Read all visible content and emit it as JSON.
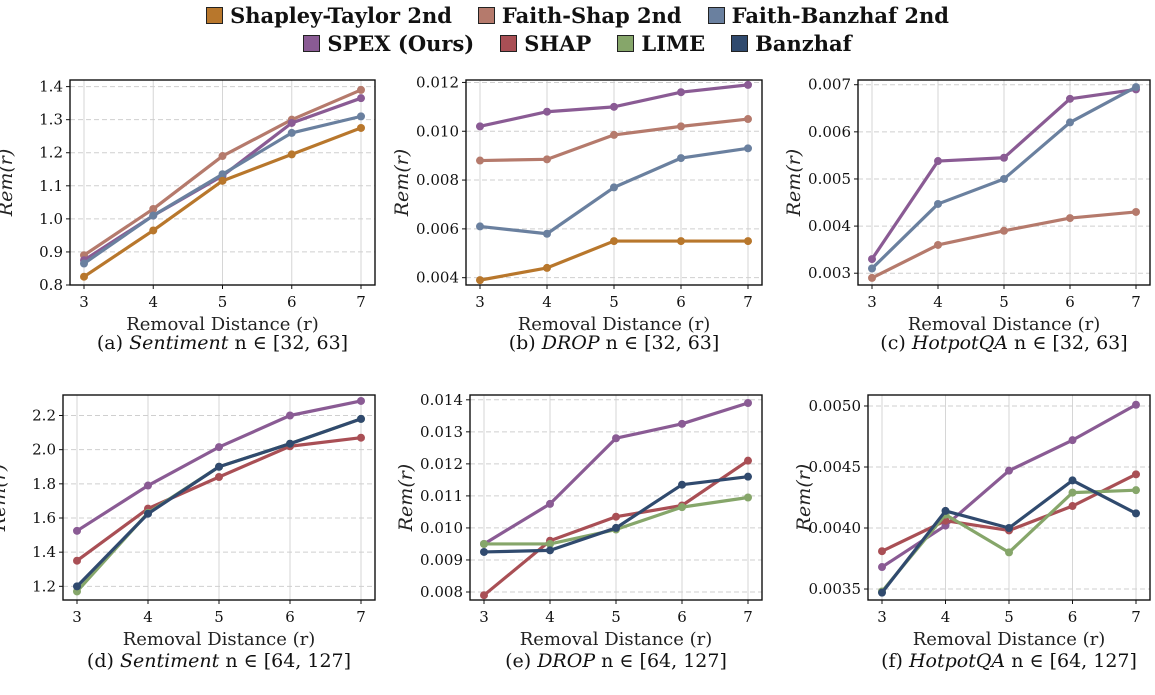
{
  "legend": {
    "row1": [
      {
        "label": "Shapley-Taylor 2nd",
        "color": "#b8772c"
      },
      {
        "label": "Faith-Shap 2nd",
        "color": "#b57a6c"
      },
      {
        "label": "Faith-Banzhaf 2nd",
        "color": "#6a809f"
      }
    ],
    "row2": [
      {
        "label": "SPEX (Ours)",
        "color": "#8a5b94"
      },
      {
        "label": "SHAP",
        "color": "#a94f55"
      },
      {
        "label": "LIME",
        "color": "#86a66a"
      },
      {
        "label": "Banzhaf",
        "color": "#304a6e"
      }
    ]
  },
  "chart_data": [
    {
      "type": "line",
      "caption_prefix": "(a) ",
      "caption_dataset": "Sentiment",
      "caption_range": " n ∈ [32, 63]",
      "xlabel": "Removal Distance (r)",
      "ylabel": "Rem(r)",
      "x": [
        3,
        4,
        5,
        6,
        7
      ],
      "xticks": [
        "3",
        "4",
        "5",
        "6",
        "7"
      ],
      "ylim": [
        0.8,
        1.42
      ],
      "yticks": [
        "0.8",
        "0.9",
        "1.0",
        "1.1",
        "1.2",
        "1.3",
        "1.4"
      ],
      "ytick_values": [
        0.8,
        0.9,
        1.0,
        1.1,
        1.2,
        1.3,
        1.4
      ],
      "series": [
        {
          "name": "Faith-Shap 2nd",
          "color": "#b57a6c",
          "values": [
            0.89,
            1.03,
            1.19,
            1.3,
            1.39
          ]
        },
        {
          "name": "SPEX (Ours)",
          "color": "#8a5b94",
          "values": [
            0.875,
            1.01,
            1.13,
            1.29,
            1.365
          ]
        },
        {
          "name": "Faith-Banzhaf 2nd",
          "color": "#6a809f",
          "values": [
            0.865,
            1.01,
            1.135,
            1.26,
            1.31
          ]
        },
        {
          "name": "Shapley-Taylor 2nd",
          "color": "#b8772c",
          "values": [
            0.825,
            0.965,
            1.115,
            1.195,
            1.275
          ]
        }
      ]
    },
    {
      "type": "line",
      "caption_prefix": "(b) ",
      "caption_dataset": "DROP",
      "caption_range": " n ∈ [32, 63]",
      "xlabel": "Removal Distance (r)",
      "ylabel": "Rem(r)",
      "x": [
        3,
        4,
        5,
        6,
        7
      ],
      "xticks": [
        "3",
        "4",
        "5",
        "6",
        "7"
      ],
      "ylim": [
        0.0037,
        0.0121
      ],
      "yticks": [
        "0.004",
        "0.006",
        "0.008",
        "0.010",
        "0.012"
      ],
      "ytick_values": [
        0.004,
        0.006,
        0.008,
        0.01,
        0.012
      ],
      "series": [
        {
          "name": "SPEX (Ours)",
          "color": "#8a5b94",
          "values": [
            0.0102,
            0.0108,
            0.011,
            0.0116,
            0.0119
          ]
        },
        {
          "name": "Faith-Shap 2nd",
          "color": "#b57a6c",
          "values": [
            0.0088,
            0.00885,
            0.00985,
            0.0102,
            0.0105
          ]
        },
        {
          "name": "Faith-Banzhaf 2nd",
          "color": "#6a809f",
          "values": [
            0.0061,
            0.0058,
            0.0077,
            0.0089,
            0.0093
          ]
        },
        {
          "name": "Shapley-Taylor 2nd",
          "color": "#b8772c",
          "values": [
            0.0039,
            0.0044,
            0.0055,
            0.0055,
            0.0055
          ]
        }
      ]
    },
    {
      "type": "line",
      "caption_prefix": "(c) ",
      "caption_dataset": "HotpotQA",
      "caption_range": " n ∈ [32, 63]",
      "xlabel": "Removal Distance (r)",
      "ylabel": "Rem(r)",
      "x": [
        3,
        4,
        5,
        6,
        7
      ],
      "xticks": [
        "3",
        "4",
        "5",
        "6",
        "7"
      ],
      "ylim": [
        0.00275,
        0.0071
      ],
      "yticks": [
        "0.003",
        "0.004",
        "0.005",
        "0.006",
        "0.007"
      ],
      "ytick_values": [
        0.003,
        0.004,
        0.005,
        0.006,
        0.007
      ],
      "series": [
        {
          "name": "SPEX (Ours)",
          "color": "#8a5b94",
          "values": [
            0.0033,
            0.00538,
            0.00545,
            0.0067,
            0.0069
          ]
        },
        {
          "name": "Faith-Banzhaf 2nd",
          "color": "#6a809f",
          "values": [
            0.0031,
            0.00447,
            0.005,
            0.0062,
            0.00695
          ]
        },
        {
          "name": "Faith-Shap 2nd",
          "color": "#b57a6c",
          "values": [
            0.0029,
            0.0036,
            0.0039,
            0.00417,
            0.0043
          ]
        }
      ]
    },
    {
      "type": "line",
      "caption_prefix": "(d) ",
      "caption_dataset": "Sentiment",
      "caption_range": " n ∈ [64, 127]",
      "xlabel": "Removal Distance (r)",
      "ylabel": "Rem(r)",
      "x": [
        3,
        4,
        5,
        6,
        7
      ],
      "xticks": [
        "3",
        "4",
        "5",
        "6",
        "7"
      ],
      "ylim": [
        1.12,
        2.32
      ],
      "yticks": [
        "1.2",
        "1.4",
        "1.6",
        "1.8",
        "2.0",
        "2.2"
      ],
      "ytick_values": [
        1.2,
        1.4,
        1.6,
        1.8,
        2.0,
        2.2
      ],
      "series": [
        {
          "name": "SPEX (Ours)",
          "color": "#8a5b94",
          "values": [
            1.525,
            1.79,
            2.015,
            2.2,
            2.285
          ]
        },
        {
          "name": "SHAP",
          "color": "#a94f55",
          "values": [
            1.35,
            1.655,
            1.84,
            2.02,
            2.07
          ]
        },
        {
          "name": "LIME",
          "color": "#86a66a",
          "values": [
            1.17,
            1.63,
            1.9,
            2.035,
            2.18
          ]
        },
        {
          "name": "Banzhaf",
          "color": "#304a6e",
          "values": [
            1.2,
            1.625,
            1.9,
            2.035,
            2.18
          ]
        }
      ]
    },
    {
      "type": "line",
      "caption_prefix": "(e) ",
      "caption_dataset": "DROP",
      "caption_range": " n ∈ [64, 127]",
      "xlabel": "Removal Distance (r)",
      "ylabel": "Rem(r)",
      "x": [
        3,
        4,
        5,
        6,
        7
      ],
      "xticks": [
        "3",
        "4",
        "5",
        "6",
        "7"
      ],
      "ylim": [
        0.00775,
        0.01415
      ],
      "yticks": [
        "0.008",
        "0.009",
        "0.010",
        "0.011",
        "0.012",
        "0.013",
        "0.014"
      ],
      "ytick_values": [
        0.008,
        0.009,
        0.01,
        0.011,
        0.012,
        0.013,
        0.014
      ],
      "series": [
        {
          "name": "SPEX (Ours)",
          "color": "#8a5b94",
          "values": [
            0.0095,
            0.01075,
            0.0128,
            0.01325,
            0.0139
          ]
        },
        {
          "name": "SHAP",
          "color": "#a94f55",
          "values": [
            0.0079,
            0.0096,
            0.01035,
            0.0107,
            0.0121
          ]
        },
        {
          "name": "LIME",
          "color": "#86a66a",
          "values": [
            0.0095,
            0.0095,
            0.00995,
            0.01065,
            0.01095
          ]
        },
        {
          "name": "Banzhaf",
          "color": "#304a6e",
          "values": [
            0.00925,
            0.0093,
            0.01,
            0.01135,
            0.0116
          ]
        }
      ]
    },
    {
      "type": "line",
      "caption_prefix": "(f) ",
      "caption_dataset": "HotpotQA",
      "caption_range": " n ∈ [64, 127]",
      "xlabel": "Removal Distance (r)",
      "ylabel": "Rem(r)",
      "x": [
        3,
        4,
        5,
        6,
        7
      ],
      "xticks": [
        "3",
        "4",
        "5",
        "6",
        "7"
      ],
      "ylim": [
        0.00341,
        0.00509
      ],
      "yticks": [
        "0.0035",
        "0.0040",
        "0.0045",
        "0.0050"
      ],
      "ytick_values": [
        0.0035,
        0.004,
        0.0045,
        0.005
      ],
      "series": [
        {
          "name": "SPEX (Ours)",
          "color": "#8a5b94",
          "values": [
            0.00368,
            0.00402,
            0.00447,
            0.00472,
            0.00501
          ]
        },
        {
          "name": "SHAP",
          "color": "#a94f55",
          "values": [
            0.00381,
            0.00406,
            0.00398,
            0.00418,
            0.00444
          ]
        },
        {
          "name": "LIME",
          "color": "#86a66a",
          "values": [
            0.00348,
            0.00411,
            0.0038,
            0.00429,
            0.00431
          ]
        },
        {
          "name": "Banzhaf",
          "color": "#304a6e",
          "values": [
            0.00347,
            0.00414,
            0.004,
            0.00439,
            0.00412
          ]
        }
      ]
    }
  ]
}
